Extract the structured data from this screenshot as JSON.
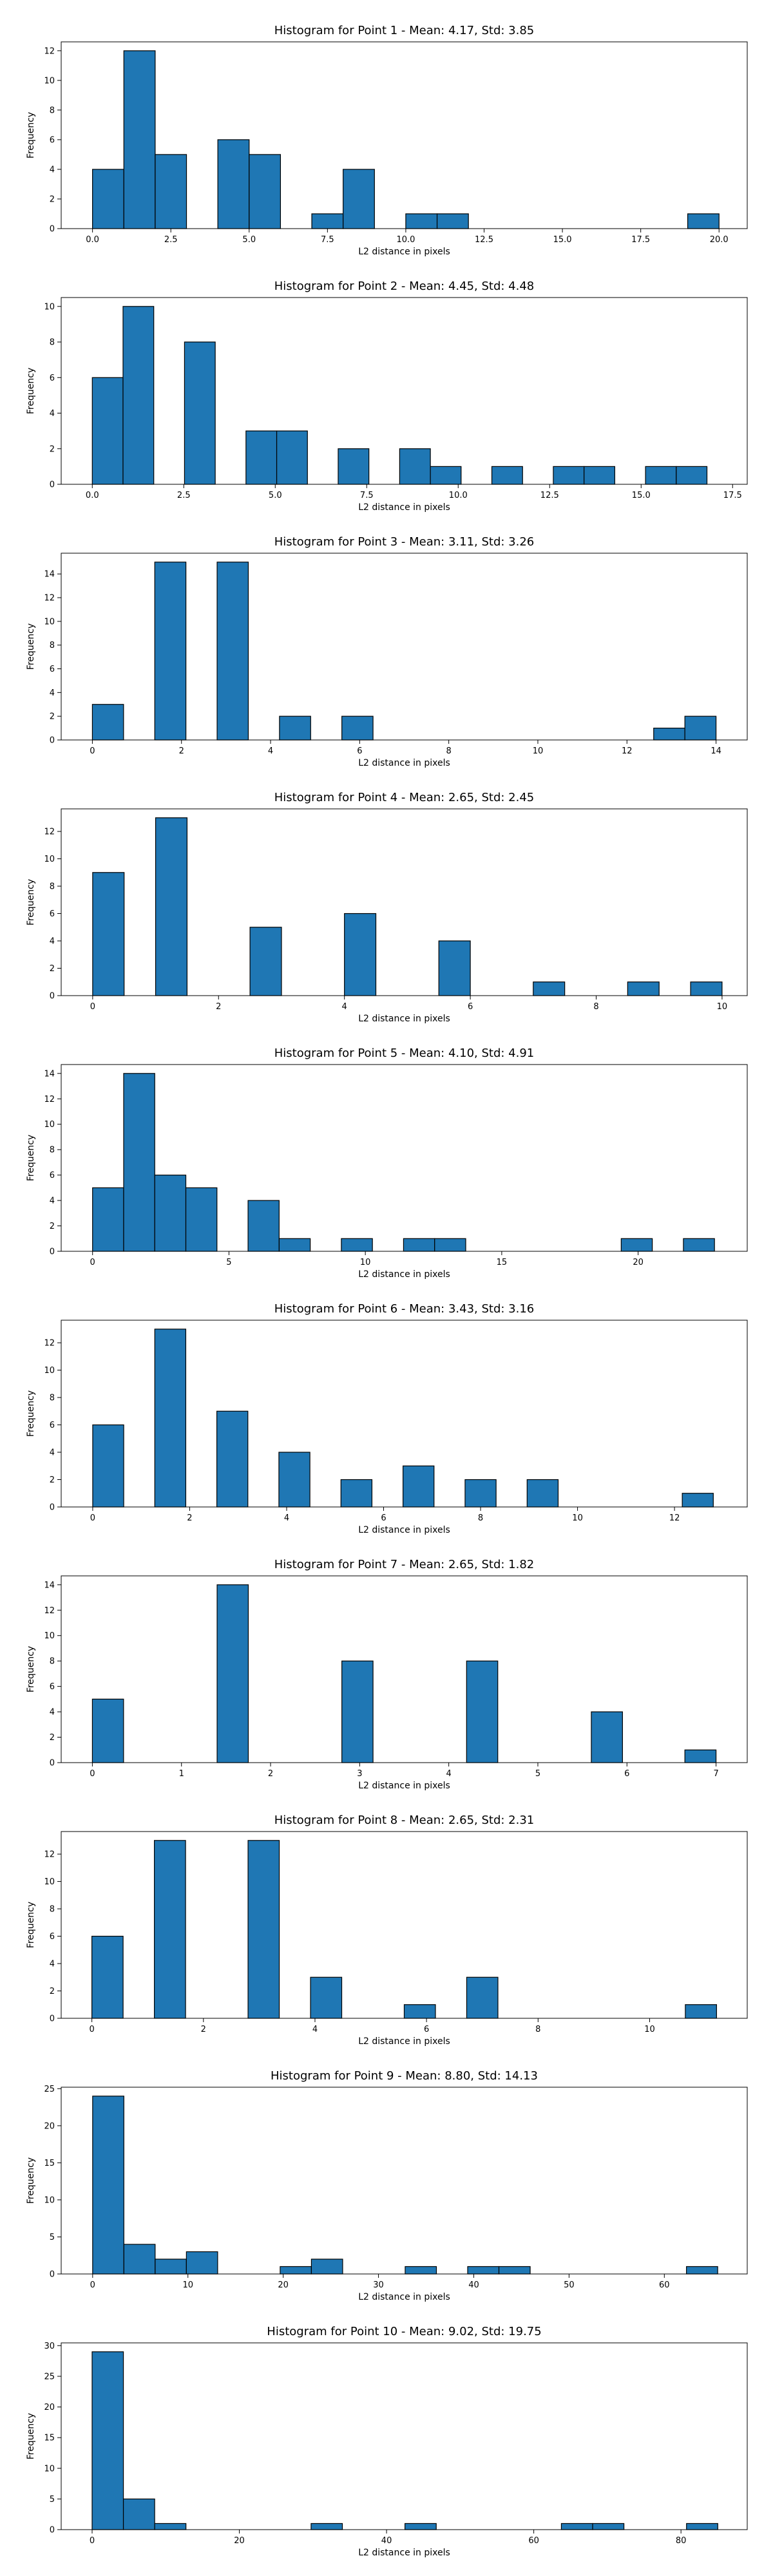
{
  "chart_data": [
    {
      "type": "bar",
      "title": "Histogram for Point 1 - Mean: 4.17, Std: 3.85",
      "xlabel": "L2 distance in pixels",
      "ylabel": "Frequency",
      "xlim": [
        -1.0,
        20.9
      ],
      "ylim": [
        0,
        12.6
      ],
      "xticks": [
        0.0,
        2.5,
        5.0,
        7.5,
        10.0,
        12.5,
        15.0,
        17.5,
        20.0
      ],
      "xtick_labels": [
        "0.0",
        "2.5",
        "5.0",
        "7.5",
        "10.0",
        "12.5",
        "15.0",
        "17.5",
        "20.0"
      ],
      "yticks": [
        0,
        2,
        4,
        6,
        8,
        10,
        12
      ],
      "bin_width": 1.0,
      "bins": [
        {
          "x": 0.0,
          "count": 4
        },
        {
          "x": 1.0,
          "count": 12
        },
        {
          "x": 2.0,
          "count": 5
        },
        {
          "x": 4.0,
          "count": 6
        },
        {
          "x": 5.0,
          "count": 5
        },
        {
          "x": 7.0,
          "count": 1
        },
        {
          "x": 8.0,
          "count": 4
        },
        {
          "x": 10.0,
          "count": 1
        },
        {
          "x": 11.0,
          "count": 1
        },
        {
          "x": 19.0,
          "count": 1
        }
      ]
    },
    {
      "type": "bar",
      "title": "Histogram for Point 2 - Mean: 4.45, Std: 4.48",
      "xlabel": "L2 distance in pixels",
      "ylabel": "Frequency",
      "xlim": [
        -0.85,
        17.9
      ],
      "ylim": [
        0,
        10.5
      ],
      "xticks": [
        0.0,
        2.5,
        5.0,
        7.5,
        10.0,
        12.5,
        15.0,
        17.5
      ],
      "xtick_labels": [
        "0.0",
        "2.5",
        "5.0",
        "7.5",
        "10.0",
        "12.5",
        "15.0",
        "17.5"
      ],
      "yticks": [
        0,
        2,
        4,
        6,
        8,
        10
      ],
      "bin_width": 0.84,
      "bins": [
        {
          "x": 0.0,
          "count": 6
        },
        {
          "x": 0.84,
          "count": 10
        },
        {
          "x": 2.52,
          "count": 8
        },
        {
          "x": 4.2,
          "count": 3
        },
        {
          "x": 5.04,
          "count": 3
        },
        {
          "x": 6.72,
          "count": 2
        },
        {
          "x": 8.4,
          "count": 2
        },
        {
          "x": 9.24,
          "count": 1
        },
        {
          "x": 10.92,
          "count": 1
        },
        {
          "x": 12.6,
          "count": 1
        },
        {
          "x": 13.44,
          "count": 1
        },
        {
          "x": 15.12,
          "count": 1
        },
        {
          "x": 15.96,
          "count": 1
        }
      ]
    },
    {
      "type": "bar",
      "title": "Histogram for Point 3 - Mean: 3.11, Std: 3.26",
      "xlabel": "L2 distance in pixels",
      "ylabel": "Frequency",
      "xlim": [
        -0.7,
        14.7
      ],
      "ylim": [
        0,
        15.75
      ],
      "xticks": [
        0,
        2,
        4,
        6,
        8,
        10,
        12,
        14
      ],
      "xtick_labels": [
        "0",
        "2",
        "4",
        "6",
        "8",
        "10",
        "12",
        "14"
      ],
      "yticks": [
        0,
        2,
        4,
        6,
        8,
        10,
        12,
        14
      ],
      "bin_width": 0.7,
      "bins": [
        {
          "x": 0.0,
          "count": 3
        },
        {
          "x": 1.4,
          "count": 15
        },
        {
          "x": 2.8,
          "count": 15
        },
        {
          "x": 4.2,
          "count": 2
        },
        {
          "x": 5.6,
          "count": 2
        },
        {
          "x": 12.6,
          "count": 1
        },
        {
          "x": 13.3,
          "count": 2
        }
      ]
    },
    {
      "type": "bar",
      "title": "Histogram for Point 4 - Mean: 2.65, Std: 2.45",
      "xlabel": "L2 distance in pixels",
      "ylabel": "Frequency",
      "xlim": [
        -0.5,
        10.4
      ],
      "ylim": [
        0,
        13.65
      ],
      "xticks": [
        0,
        2,
        4,
        6,
        8,
        10
      ],
      "xtick_labels": [
        "0",
        "2",
        "4",
        "6",
        "8",
        "10"
      ],
      "yticks": [
        0,
        2,
        4,
        6,
        8,
        10,
        12
      ],
      "bin_width": 0.5,
      "bins": [
        {
          "x": 0.0,
          "count": 9
        },
        {
          "x": 1.0,
          "count": 13
        },
        {
          "x": 2.5,
          "count": 5
        },
        {
          "x": 4.0,
          "count": 6
        },
        {
          "x": 5.5,
          "count": 4
        },
        {
          "x": 7.0,
          "count": 1
        },
        {
          "x": 8.5,
          "count": 1
        },
        {
          "x": 9.5,
          "count": 1
        }
      ]
    },
    {
      "type": "bar",
      "title": "Histogram for Point 5 - Mean: 4.10, Std: 4.91",
      "xlabel": "L2 distance in pixels",
      "ylabel": "Frequency",
      "xlim": [
        -1.15,
        24.0
      ],
      "ylim": [
        0,
        14.7
      ],
      "xticks": [
        0,
        5,
        10,
        15,
        20
      ],
      "xtick_labels": [
        "0",
        "5",
        "10",
        "15",
        "20"
      ],
      "yticks": [
        0,
        2,
        4,
        6,
        8,
        10,
        12,
        14
      ],
      "bin_width": 1.14,
      "bins": [
        {
          "x": 0.0,
          "count": 5
        },
        {
          "x": 1.14,
          "count": 14
        },
        {
          "x": 2.28,
          "count": 6
        },
        {
          "x": 3.42,
          "count": 5
        },
        {
          "x": 5.7,
          "count": 4
        },
        {
          "x": 6.84,
          "count": 1
        },
        {
          "x": 9.12,
          "count": 1
        },
        {
          "x": 11.4,
          "count": 1
        },
        {
          "x": 12.54,
          "count": 1
        },
        {
          "x": 19.38,
          "count": 1
        },
        {
          "x": 21.66,
          "count": 1
        }
      ]
    },
    {
      "type": "bar",
      "title": "Histogram for Point 6 - Mean: 3.43, Std: 3.16",
      "xlabel": "L2 distance in pixels",
      "ylabel": "Frequency",
      "xlim": [
        -0.65,
        13.5
      ],
      "ylim": [
        0,
        13.65
      ],
      "xticks": [
        0,
        2,
        4,
        6,
        8,
        10,
        12
      ],
      "xtick_labels": [
        "0",
        "2",
        "4",
        "6",
        "8",
        "10",
        "12"
      ],
      "yticks": [
        0,
        2,
        4,
        6,
        8,
        10,
        12
      ],
      "bin_width": 0.64,
      "bins": [
        {
          "x": 0.0,
          "count": 6
        },
        {
          "x": 1.28,
          "count": 13
        },
        {
          "x": 2.56,
          "count": 7
        },
        {
          "x": 3.84,
          "count": 4
        },
        {
          "x": 5.12,
          "count": 2
        },
        {
          "x": 6.4,
          "count": 3
        },
        {
          "x": 7.68,
          "count": 2
        },
        {
          "x": 8.96,
          "count": 2
        },
        {
          "x": 12.16,
          "count": 1
        }
      ]
    },
    {
      "type": "bar",
      "title": "Histogram for Point 7 - Mean: 2.65, Std: 1.82",
      "xlabel": "L2 distance in pixels",
      "ylabel": "Frequency",
      "xlim": [
        -0.35,
        7.35
      ],
      "ylim": [
        0,
        14.7
      ],
      "xticks": [
        0,
        1,
        2,
        3,
        4,
        5,
        6,
        7
      ],
      "xtick_labels": [
        "0",
        "1",
        "2",
        "3",
        "4",
        "5",
        "6",
        "7"
      ],
      "yticks": [
        0,
        2,
        4,
        6,
        8,
        10,
        12,
        14
      ],
      "bin_width": 0.35,
      "bins": [
        {
          "x": 0.0,
          "count": 5
        },
        {
          "x": 1.4,
          "count": 14
        },
        {
          "x": 2.8,
          "count": 8
        },
        {
          "x": 4.2,
          "count": 8
        },
        {
          "x": 5.6,
          "count": 4
        },
        {
          "x": 6.65,
          "count": 1
        }
      ]
    },
    {
      "type": "bar",
      "title": "Histogram for Point 8 - Mean: 2.65, Std: 2.31",
      "xlabel": "L2 distance in pixels",
      "ylabel": "Frequency",
      "xlim": [
        -0.55,
        11.75
      ],
      "ylim": [
        0,
        13.65
      ],
      "xticks": [
        0,
        2,
        4,
        6,
        8,
        10
      ],
      "xtick_labels": [
        "0",
        "2",
        "4",
        "6",
        "8",
        "10"
      ],
      "yticks": [
        0,
        2,
        4,
        6,
        8,
        10,
        12
      ],
      "bin_width": 0.56,
      "bins": [
        {
          "x": 0.0,
          "count": 6
        },
        {
          "x": 1.12,
          "count": 13
        },
        {
          "x": 2.8,
          "count": 13
        },
        {
          "x": 3.92,
          "count": 3
        },
        {
          "x": 5.6,
          "count": 1
        },
        {
          "x": 6.72,
          "count": 3
        },
        {
          "x": 10.64,
          "count": 1
        }
      ]
    },
    {
      "type": "bar",
      "title": "Histogram for Point 9 - Mean: 8.80, Std: 14.13",
      "xlabel": "L2 distance in pixels",
      "ylabel": "Frequency",
      "xlim": [
        -3.3,
        68.7
      ],
      "ylim": [
        0,
        25.2
      ],
      "xticks": [
        0,
        10,
        20,
        30,
        40,
        50,
        60
      ],
      "xtick_labels": [
        "0",
        "10",
        "20",
        "30",
        "40",
        "50",
        "60"
      ],
      "yticks": [
        0,
        5,
        10,
        15,
        20,
        25
      ],
      "bin_width": 3.28,
      "bins": [
        {
          "x": 0.0,
          "count": 24
        },
        {
          "x": 3.28,
          "count": 4
        },
        {
          "x": 6.56,
          "count": 2
        },
        {
          "x": 9.84,
          "count": 3
        },
        {
          "x": 19.68,
          "count": 1
        },
        {
          "x": 22.96,
          "count": 2
        },
        {
          "x": 32.8,
          "count": 1
        },
        {
          "x": 39.36,
          "count": 1
        },
        {
          "x": 42.64,
          "count": 1
        },
        {
          "x": 62.32,
          "count": 1
        }
      ]
    },
    {
      "type": "bar",
      "title": "Histogram for Point 10 - Mean: 9.02, Std: 19.75",
      "xlabel": "L2 distance in pixels",
      "ylabel": "Frequency",
      "xlim": [
        -4.2,
        89.0
      ],
      "ylim": [
        0,
        30.45
      ],
      "xticks": [
        0,
        20,
        40,
        60,
        80
      ],
      "xtick_labels": [
        "0",
        "20",
        "40",
        "60",
        "80"
      ],
      "yticks": [
        0,
        5,
        10,
        15,
        20,
        25,
        30
      ],
      "bin_width": 4.25,
      "bins": [
        {
          "x": 0.0,
          "count": 29
        },
        {
          "x": 4.25,
          "count": 5
        },
        {
          "x": 8.5,
          "count": 1
        },
        {
          "x": 29.75,
          "count": 1
        },
        {
          "x": 42.5,
          "count": 1
        },
        {
          "x": 63.75,
          "count": 1
        },
        {
          "x": 68.0,
          "count": 1
        },
        {
          "x": 80.75,
          "count": 1
        }
      ]
    }
  ]
}
